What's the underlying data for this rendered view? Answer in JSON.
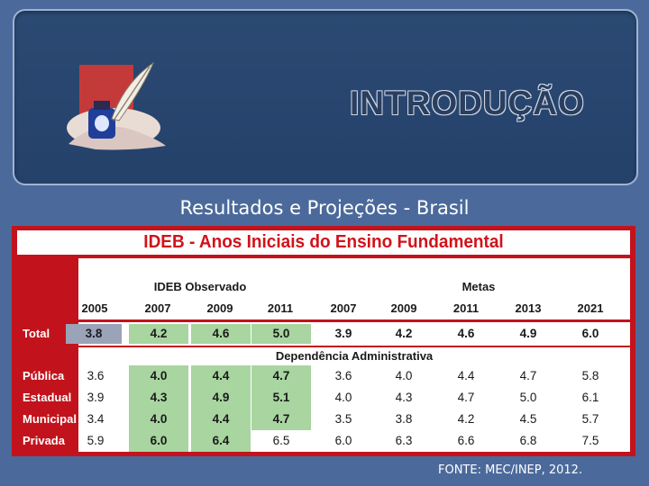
{
  "slide": {
    "title": "INTRODUÇÃO",
    "subtitle": "Resultados e Projeções - Brasil",
    "footer": "FONTE: MEC/INEP, 2012."
  },
  "logo": {
    "icon": "quill-inkwell-icon"
  },
  "table": {
    "title": "IDEB - Anos Iniciais do Ensino Fundamental",
    "group_observed": "IDEB Observado",
    "group_targets": "Metas",
    "section_label": "Dependência Administrativa",
    "observed_years": [
      "2005",
      "2007",
      "2009",
      "2011"
    ],
    "target_years": [
      "2007",
      "2009",
      "2011",
      "2013",
      "2021"
    ],
    "rows": [
      {
        "label": "Total",
        "observed": [
          "3.8",
          "4.2",
          "4.6",
          "5.0"
        ],
        "targets": [
          "3.9",
          "4.2",
          "4.6",
          "4.9",
          "6.0"
        ]
      },
      {
        "label": "Pública",
        "observed": [
          "3.6",
          "4.0",
          "4.4",
          "4.7"
        ],
        "targets": [
          "3.6",
          "4.0",
          "4.4",
          "4.7",
          "5.8"
        ]
      },
      {
        "label": "Estadual",
        "observed": [
          "3.9",
          "4.3",
          "4.9",
          "5.1"
        ],
        "targets": [
          "4.0",
          "4.3",
          "4.7",
          "5.0",
          "6.1"
        ]
      },
      {
        "label": "Municipal",
        "observed": [
          "3.4",
          "4.0",
          "4.4",
          "4.7"
        ],
        "targets": [
          "3.5",
          "3.8",
          "4.2",
          "4.5",
          "5.7"
        ]
      },
      {
        "label": "Privada",
        "observed": [
          "5.9",
          "6.0",
          "6.4",
          "6.5"
        ],
        "targets": [
          "6.0",
          "6.3",
          "6.6",
          "6.8",
          "7.5"
        ]
      }
    ],
    "colors": {
      "frame": "#c2131c",
      "highlight_green": "#a8d5a0",
      "total_first": "#9aa3b8"
    }
  }
}
